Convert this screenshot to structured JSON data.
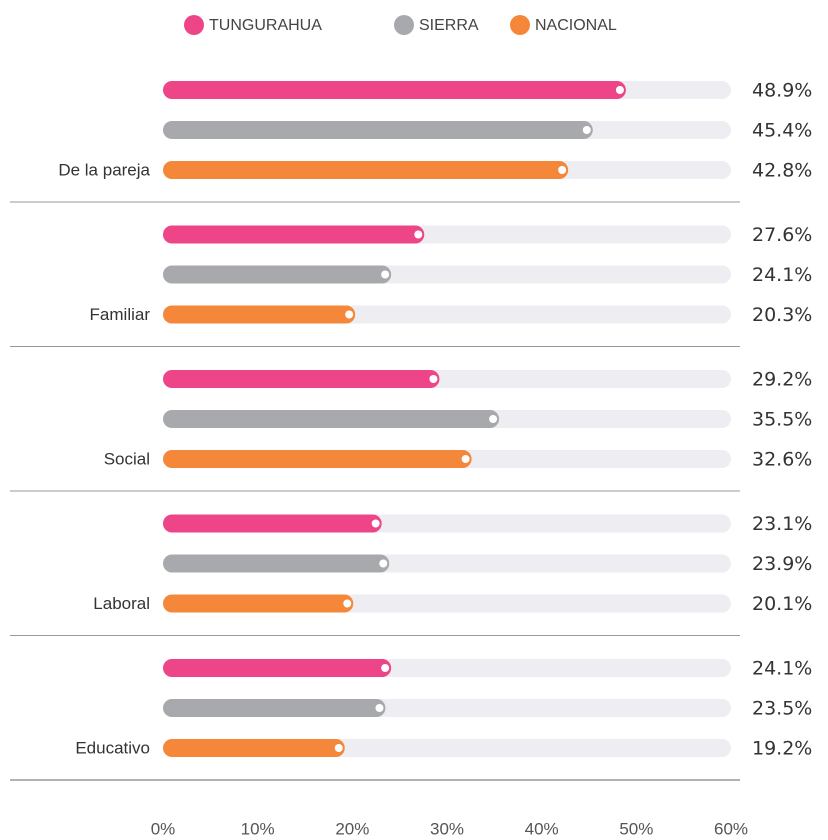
{
  "chart_data": {
    "type": "bar",
    "orientation": "horizontal",
    "legend": "top",
    "categories": [
      "De la pareja",
      "Familiar",
      "Social",
      "Laboral",
      "Educativo"
    ],
    "series": [
      {
        "name": "TUNGURAHUA",
        "color": "#ee4589",
        "values": [
          48.9,
          27.6,
          29.2,
          23.1,
          24.1
        ],
        "value_labels": [
          "48.9%",
          "27.6%",
          "29.2%",
          "23.1%",
          "24.1%"
        ]
      },
      {
        "name": "SIERRA",
        "color": "#a8a9ac",
        "values": [
          45.4,
          24.1,
          35.5,
          23.9,
          23.5
        ],
        "value_labels": [
          "45.4%",
          "24.1%",
          "35.5%",
          "23.9%",
          "23.5%"
        ]
      },
      {
        "name": "NACIONAL",
        "color": "#f5873a",
        "values": [
          42.8,
          20.3,
          32.6,
          20.1,
          19.2
        ],
        "value_labels": [
          "42.8%",
          "20.3%",
          "32.6%",
          "20.1%",
          "19.2%"
        ]
      }
    ],
    "xlim": [
      0,
      60
    ],
    "xticks": [
      {
        "value": 0,
        "label": "0%"
      },
      {
        "value": 10,
        "label": "10%"
      },
      {
        "value": 20,
        "label": "20%"
      },
      {
        "value": 30,
        "label": "30%"
      },
      {
        "value": 40,
        "label": "40%"
      },
      {
        "value": 50,
        "label": "50%"
      },
      {
        "value": 60,
        "label": "60%"
      }
    ]
  }
}
